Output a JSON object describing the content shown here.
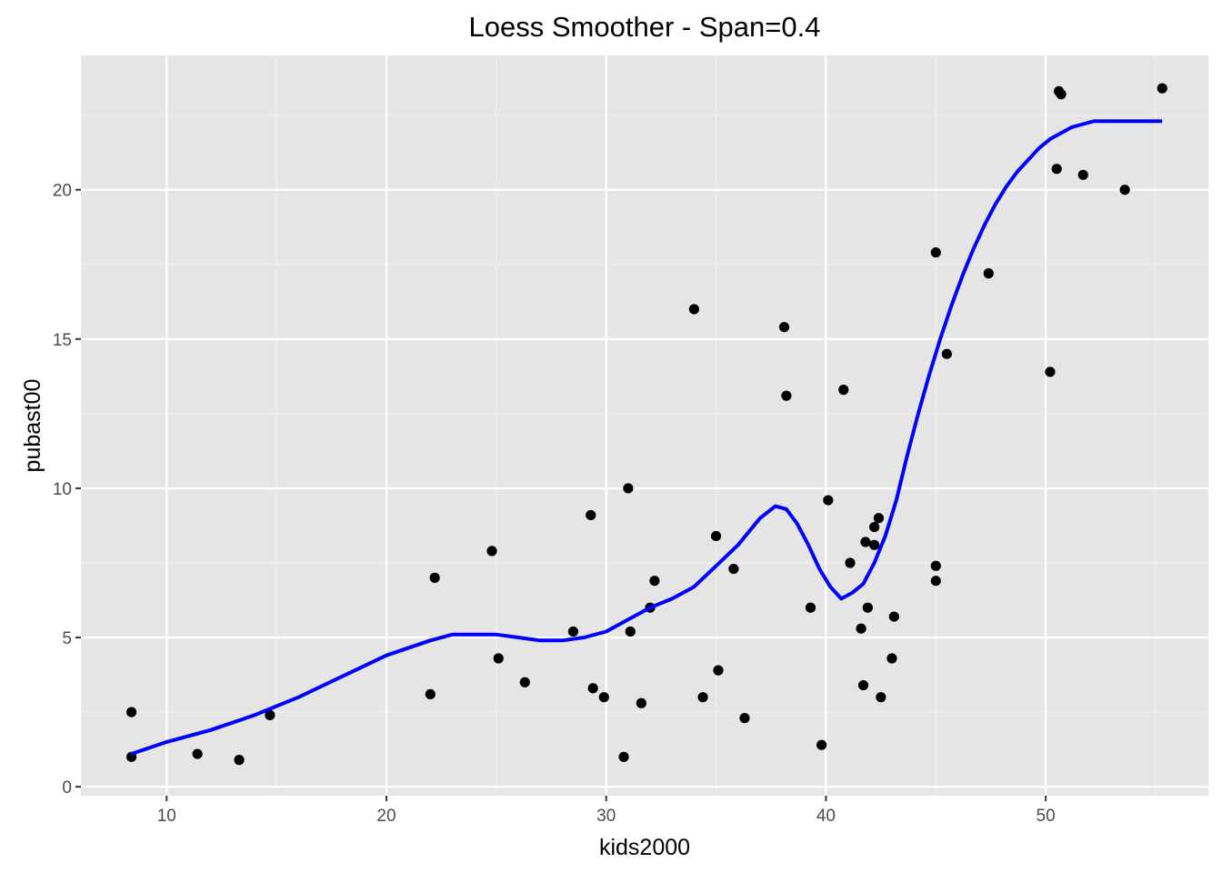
{
  "chart_data": {
    "type": "scatter",
    "title": "Loess Smoother - Span=0.4",
    "xlabel": "kids2000",
    "ylabel": "pubast00",
    "xlim": [
      6.1,
      57.4
    ],
    "ylim": [
      -0.3,
      24.5
    ],
    "x_ticks": [
      10,
      20,
      30,
      40,
      50
    ],
    "y_ticks": [
      0,
      5,
      10,
      15,
      20
    ],
    "x_tick_labels": [
      "10",
      "20",
      "30",
      "40",
      "50"
    ],
    "y_tick_labels": [
      "0",
      "5",
      "10",
      "15",
      "20"
    ],
    "grid": true,
    "background": "#e5e5e5",
    "point_color": "#000000",
    "line_color": "#0000ff",
    "points": [
      {
        "x": 8.4,
        "y": 2.5
      },
      {
        "x": 8.4,
        "y": 1.0
      },
      {
        "x": 11.4,
        "y": 1.1
      },
      {
        "x": 13.3,
        "y": 0.9
      },
      {
        "x": 14.7,
        "y": 2.4
      },
      {
        "x": 22.0,
        "y": 3.1
      },
      {
        "x": 22.2,
        "y": 7.0
      },
      {
        "x": 24.8,
        "y": 7.9
      },
      {
        "x": 25.1,
        "y": 4.3
      },
      {
        "x": 26.3,
        "y": 3.5
      },
      {
        "x": 28.5,
        "y": 5.2
      },
      {
        "x": 29.3,
        "y": 9.1
      },
      {
        "x": 29.4,
        "y": 3.3
      },
      {
        "x": 29.9,
        "y": 3.0
      },
      {
        "x": 30.8,
        "y": 1.0
      },
      {
        "x": 31.0,
        "y": 10.0
      },
      {
        "x": 31.1,
        "y": 5.2
      },
      {
        "x": 31.6,
        "y": 2.8
      },
      {
        "x": 32.0,
        "y": 6.0
      },
      {
        "x": 32.2,
        "y": 6.9
      },
      {
        "x": 34.0,
        "y": 16.0
      },
      {
        "x": 34.4,
        "y": 3.0
      },
      {
        "x": 35.0,
        "y": 8.4
      },
      {
        "x": 35.1,
        "y": 3.9
      },
      {
        "x": 35.8,
        "y": 7.3
      },
      {
        "x": 36.3,
        "y": 2.3
      },
      {
        "x": 38.1,
        "y": 15.4
      },
      {
        "x": 38.2,
        "y": 13.1
      },
      {
        "x": 39.3,
        "y": 6.0
      },
      {
        "x": 39.8,
        "y": 1.4
      },
      {
        "x": 40.1,
        "y": 9.6
      },
      {
        "x": 40.8,
        "y": 13.3
      },
      {
        "x": 41.1,
        "y": 7.5
      },
      {
        "x": 41.6,
        "y": 5.3
      },
      {
        "x": 41.7,
        "y": 3.4
      },
      {
        "x": 41.8,
        "y": 8.2
      },
      {
        "x": 41.9,
        "y": 6.0
      },
      {
        "x": 42.2,
        "y": 8.1
      },
      {
        "x": 42.2,
        "y": 8.7
      },
      {
        "x": 42.4,
        "y": 9.0
      },
      {
        "x": 42.5,
        "y": 3.0
      },
      {
        "x": 43.0,
        "y": 4.3
      },
      {
        "x": 43.1,
        "y": 5.7
      },
      {
        "x": 45.0,
        "y": 17.9
      },
      {
        "x": 45.0,
        "y": 7.4
      },
      {
        "x": 45.0,
        "y": 6.9
      },
      {
        "x": 45.5,
        "y": 14.5
      },
      {
        "x": 47.4,
        "y": 17.2
      },
      {
        "x": 50.2,
        "y": 13.9
      },
      {
        "x": 50.5,
        "y": 20.7
      },
      {
        "x": 50.6,
        "y": 23.3
      },
      {
        "x": 50.7,
        "y": 23.2
      },
      {
        "x": 51.7,
        "y": 20.5
      },
      {
        "x": 53.6,
        "y": 20.0
      },
      {
        "x": 55.3,
        "y": 23.4
      }
    ],
    "series": [
      {
        "type": "line",
        "x": [
          8.4,
          10,
          12,
          14,
          16,
          18,
          20,
          22,
          23,
          24,
          25,
          26,
          27,
          28,
          29,
          30,
          31,
          32,
          33,
          34,
          35,
          36,
          37,
          37.7,
          38.2,
          38.7,
          39.2,
          39.7,
          40.2,
          40.7,
          41.2,
          41.7,
          42.2,
          42.7,
          43.2,
          43.7,
          44.2,
          44.7,
          45.2,
          45.7,
          46.2,
          46.7,
          47.2,
          47.7,
          48.2,
          48.7,
          49.2,
          49.7,
          50.2,
          50.7,
          51.2,
          51.7,
          52.2,
          52.7,
          53.2,
          53.7,
          54.2,
          54.7,
          55.3
        ],
        "y": [
          1.1,
          1.5,
          1.9,
          2.4,
          3.0,
          3.7,
          4.4,
          4.9,
          5.1,
          5.1,
          5.1,
          5.0,
          4.9,
          4.9,
          5.0,
          5.2,
          5.6,
          6.0,
          6.3,
          6.7,
          7.4,
          8.1,
          9.0,
          9.4,
          9.3,
          8.8,
          8.1,
          7.3,
          6.7,
          6.3,
          6.5,
          6.8,
          7.5,
          8.4,
          9.6,
          11.1,
          12.5,
          13.8,
          15.0,
          16.1,
          17.1,
          18.0,
          18.8,
          19.5,
          20.1,
          20.6,
          21.0,
          21.4,
          21.7,
          21.9,
          22.1,
          22.2,
          22.3,
          22.3,
          22.3,
          22.3,
          22.3,
          22.3,
          22.3
        ]
      }
    ]
  }
}
